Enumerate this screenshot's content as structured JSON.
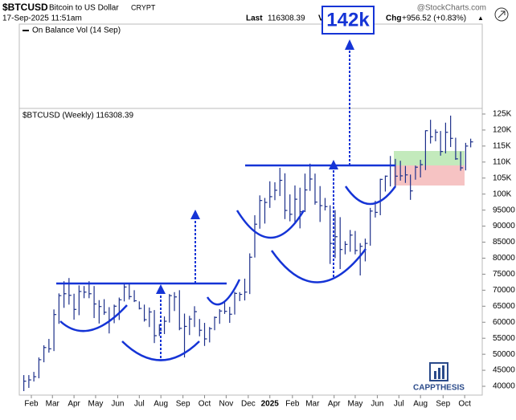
{
  "header": {
    "symbol": "$BTCUSD",
    "name": "Bitcoin to US Dollar",
    "exchange": "CRYPT",
    "source": "@StockCharts.com",
    "date": "17-Sep-2025 11:51am",
    "last_label": "Last",
    "last_value": "116308.39",
    "volume_label": "V",
    "chg_label": "Chg",
    "chg_value": "+956.52 (+0.83%)",
    "up_marker": "▲"
  },
  "target_label": "142k",
  "indicator_label": "On Balance Vol (14 Sep)",
  "watermark": "CAPPTHESIS",
  "chart_data": {
    "type": "ohlc",
    "legend": "$BTCUSD (Weekly) 116308.39",
    "color": "#1c2f8a",
    "grid": false,
    "xlim": [
      -0.9,
      91.3
    ],
    "ylim": [
      37250,
      126750
    ],
    "xticks": [
      {
        "value": 1.5,
        "label": "Feb"
      },
      {
        "value": 5.7,
        "label": "Mar"
      },
      {
        "value": 10,
        "label": "Apr"
      },
      {
        "value": 14.3,
        "label": "May"
      },
      {
        "value": 18.7,
        "label": "Jun"
      },
      {
        "value": 23,
        "label": "Jul"
      },
      {
        "value": 27.3,
        "label": "Aug"
      },
      {
        "value": 31.7,
        "label": "Sep"
      },
      {
        "value": 36,
        "label": "Oct"
      },
      {
        "value": 40.3,
        "label": "Nov"
      },
      {
        "value": 44.7,
        "label": "Dec"
      },
      {
        "value": 49,
        "label": "2025"
      },
      {
        "value": 53.5,
        "label": "Feb"
      },
      {
        "value": 57.5,
        "label": "Mar"
      },
      {
        "value": 61.8,
        "label": "Apr"
      },
      {
        "value": 66,
        "label": "May"
      },
      {
        "value": 70.4,
        "label": "Jun"
      },
      {
        "value": 74.7,
        "label": "Jul"
      },
      {
        "value": 79,
        "label": "Aug"
      },
      {
        "value": 83.5,
        "label": "Sep"
      },
      {
        "value": 87.8,
        "label": "Oct"
      }
    ],
    "yticks": [
      40000,
      45000,
      50000,
      55000,
      60000,
      65000,
      70000,
      75000,
      80000,
      85000,
      90000,
      95000,
      {
        "value": 100000,
        "label": "100K"
      },
      {
        "value": 105000,
        "label": "105K"
      },
      {
        "value": 110000,
        "label": "110K"
      },
      {
        "value": 115000,
        "label": "115K"
      },
      {
        "value": 120000,
        "label": "120K"
      },
      {
        "value": 125000,
        "label": "125K"
      }
    ],
    "high": [
      43500,
      43500,
      44500,
      49000,
      52800,
      54800,
      64000,
      69000,
      72800,
      73800,
      68900,
      71500,
      71300,
      72800,
      71300,
      66900,
      67200,
      64700,
      65500,
      67700,
      71900,
      71900,
      70000,
      66500,
      65500,
      64600,
      63800,
      59400,
      61800,
      68800,
      69400,
      70000,
      62700,
      62000,
      65000,
      61000,
      59800,
      58500,
      61800,
      64100,
      66400,
      64800,
      69500,
      69400,
      73600,
      81500,
      93400,
      99600,
      98800,
      104000,
      103700,
      108200,
      106500,
      99900,
      102700,
      102000,
      106400,
      109500,
      106400,
      102500,
      98800,
      96500,
      95000,
      92800,
      85300,
      88800,
      88500,
      84700,
      86100,
      95700,
      97900,
      104800,
      105800,
      111900,
      111000,
      110400,
      108800,
      106100,
      108900,
      110700,
      119900,
      123200,
      120200,
      119700,
      122300,
      124500,
      117600,
      113300,
      116000,
      117300
    ],
    "low": [
      38500,
      39500,
      41500,
      42500,
      47500,
      50500,
      51000,
      59500,
      64500,
      65500,
      60800,
      62200,
      67500,
      67500,
      61300,
      59600,
      62300,
      56500,
      59700,
      60700,
      66500,
      67100,
      66300,
      64000,
      60200,
      58500,
      53500,
      55700,
      56300,
      59900,
      63500,
      57500,
      49000,
      56000,
      58500,
      55600,
      52600,
      53700,
      57500,
      59500,
      62600,
      59800,
      62400,
      66600,
      66800,
      68800,
      80200,
      89200,
      90800,
      95700,
      98100,
      99400,
      92200,
      91500,
      91200,
      89300,
      94400,
      101000,
      96700,
      91300,
      94900,
      78200,
      80000,
      76600,
      81200,
      82000,
      81200,
      74600,
      79000,
      83900,
      92700,
      93400,
      100800,
      102400,
      102100,
      104200,
      103500,
      98200,
      104500,
      105200,
      107500,
      115800,
      116500,
      112000,
      112700,
      114700,
      110700,
      107300,
      107400,
      114600
    ],
    "close": [
      41600,
      42000,
      43000,
      48300,
      52100,
      51700,
      62400,
      68300,
      68900,
      68400,
      64000,
      69600,
      69400,
      68900,
      65700,
      64900,
      63100,
      60800,
      65000,
      67000,
      71000,
      68000,
      66700,
      64300,
      60800,
      63200,
      55800,
      57500,
      60300,
      68300,
      67900,
      58100,
      58700,
      61000,
      63300,
      57500,
      54800,
      58000,
      61500,
      63500,
      63400,
      62500,
      69000,
      68700,
      69400,
      80300,
      90600,
      98000,
      97400,
      99200,
      101200,
      104300,
      94900,
      93700,
      98400,
      94500,
      101300,
      104700,
      97500,
      96400,
      96100,
      84600,
      86700,
      82700,
      84300,
      87200,
      82400,
      83700,
      84600,
      94700,
      94300,
      104600,
      105600,
      109000,
      105600,
      105700,
      106000,
      101000,
      108400,
      109200,
      119800,
      117900,
      119300,
      113300,
      119300,
      117400,
      111000,
      108200,
      115000,
      116300
    ]
  }
}
